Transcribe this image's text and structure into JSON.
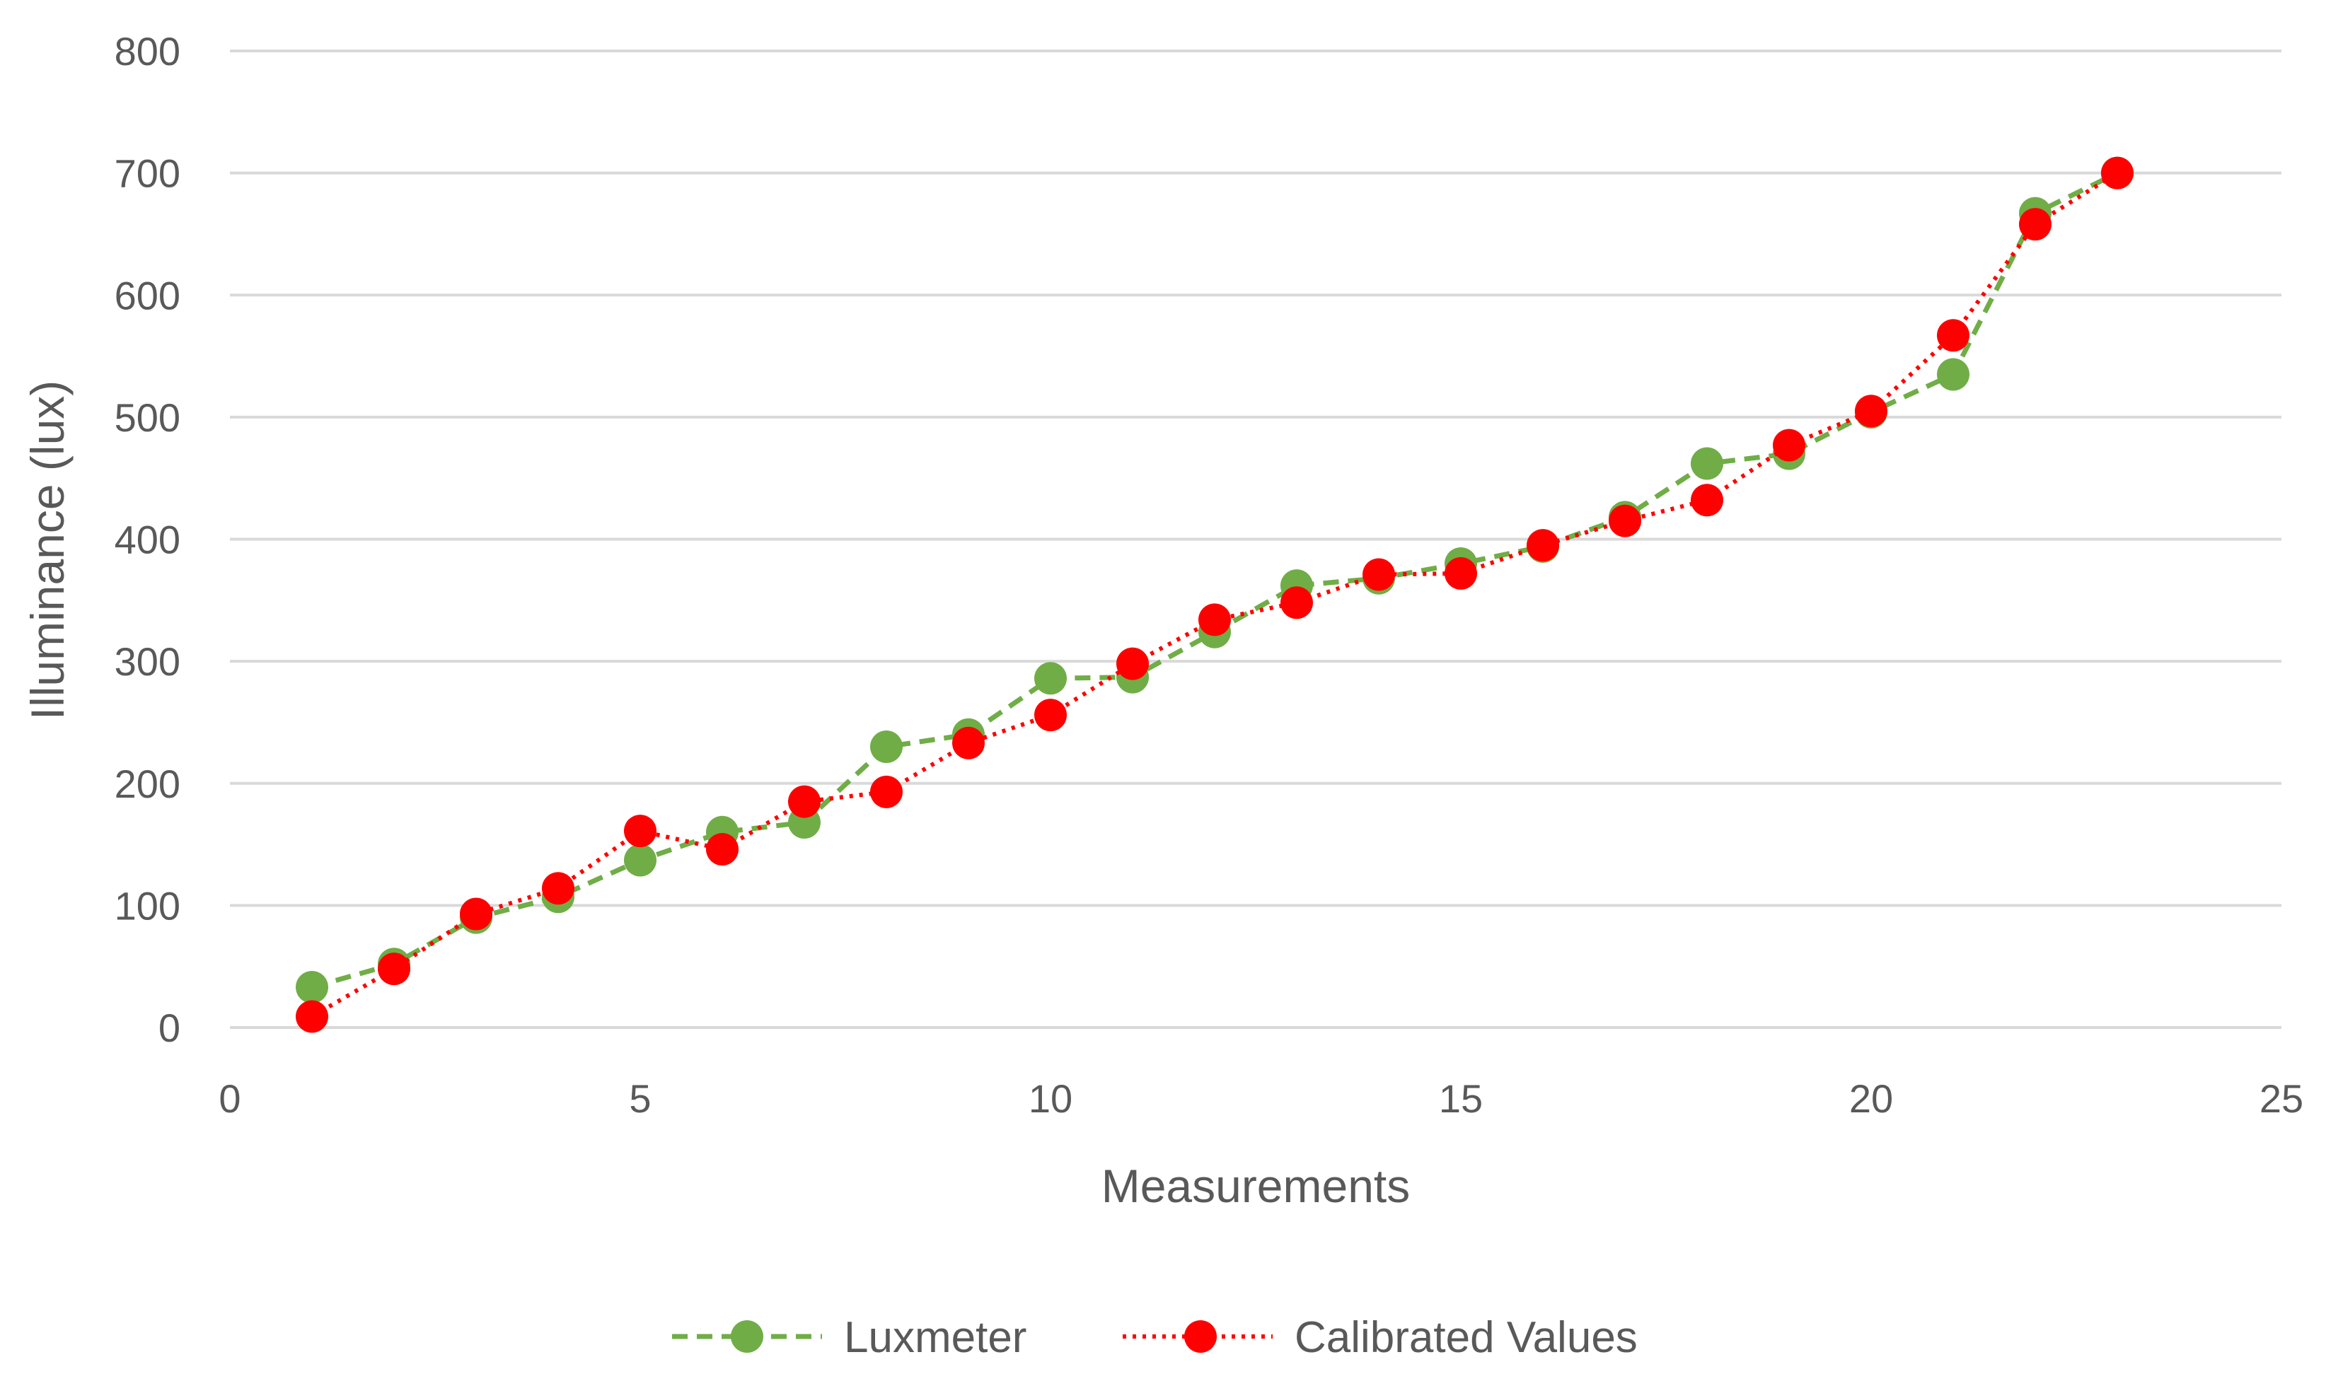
{
  "chart_data": {
    "type": "line",
    "title": "",
    "xlabel": "Measurements",
    "ylabel": "Illuminance (lux)",
    "xlim": [
      0,
      25
    ],
    "ylim": [
      0,
      800
    ],
    "x_ticks": [
      0,
      5,
      10,
      15,
      20,
      25
    ],
    "y_ticks": [
      0,
      100,
      200,
      300,
      400,
      500,
      600,
      700,
      800
    ],
    "grid": "horizontal",
    "legend_position": "bottom",
    "x": [
      1,
      2,
      3,
      4,
      5,
      6,
      7,
      8,
      9,
      10,
      11,
      12,
      13,
      14,
      15,
      16,
      17,
      18,
      19,
      20,
      21,
      22,
      23
    ],
    "series": [
      {
        "name": "Luxmeter",
        "color": "#70AD47",
        "line_style": "dashed",
        "values": [
          33,
          52,
          90,
          107,
          137,
          160,
          168,
          230,
          240,
          286,
          287,
          324,
          362,
          368,
          380,
          394,
          418,
          462,
          470,
          504,
          535,
          667,
          700
        ]
      },
      {
        "name": "Calibrated Values",
        "color": "#FF0000",
        "line_style": "dotted",
        "values": [
          9,
          48,
          93,
          114,
          161,
          146,
          185,
          193,
          233,
          256,
          298,
          334,
          348,
          371,
          372,
          395,
          415,
          432,
          477,
          505,
          567,
          658,
          700
        ]
      }
    ]
  }
}
